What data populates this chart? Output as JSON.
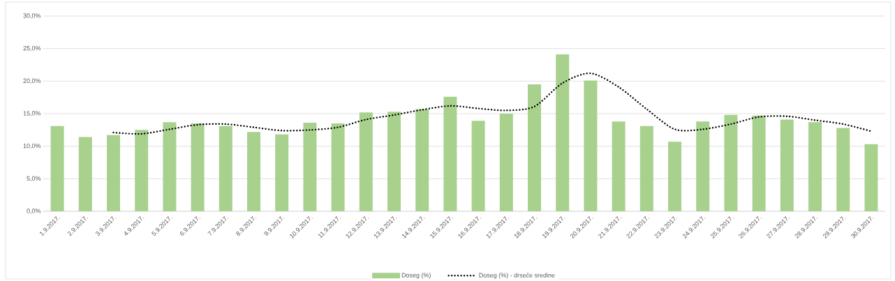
{
  "chart_data": {
    "type": "bar",
    "categories": [
      "1.9.2017.",
      "2.9.2017.",
      "3.9.2017.",
      "4.9.2017.",
      "5.9.2017.",
      "6.9.2017.",
      "7.9.2017.",
      "8.9.2017.",
      "9.9.2017.",
      "10.9.2017.",
      "11.9.2017.",
      "12.9.2017.",
      "13.9.2017.",
      "14.9.2017.",
      "15.9.2017.",
      "16.9.2017.",
      "17.9.2017.",
      "18.9.2017.",
      "19.9.2017.",
      "20.9.2017.",
      "21.9.2017.",
      "22.9.2017.",
      "23.9.2017.",
      "24.9.2017.",
      "25.9.2017.",
      "26.9.2017.",
      "27.9.2017.",
      "28.9.2017.",
      "29.9.2017.",
      "30.9.2017."
    ],
    "series": [
      {
        "name": "Doseg (%)",
        "color": "#a9d18e",
        "values": [
          13.1,
          11.4,
          11.7,
          12.5,
          13.7,
          13.5,
          13.1,
          12.2,
          11.8,
          13.6,
          13.5,
          15.2,
          15.3,
          15.7,
          17.6,
          13.9,
          15.0,
          19.5,
          24.1,
          20.1,
          13.8,
          13.1,
          10.7,
          13.8,
          14.8,
          14.7,
          14.1,
          13.7,
          12.8,
          10.3
        ]
      },
      {
        "name": "Doseg (%) - drseče sredine",
        "type": "line",
        "color": "#000000",
        "line_style": "dotted",
        "values": [
          null,
          null,
          12.1,
          11.9,
          12.6,
          13.3,
          13.4,
          12.9,
          12.4,
          12.5,
          12.9,
          14.1,
          14.8,
          15.6,
          16.2,
          15.8,
          15.5,
          16.1,
          19.7,
          21.2,
          19.1,
          15.7,
          12.6,
          12.6,
          13.4,
          14.5,
          14.6,
          14.0,
          13.4,
          12.3
        ]
      }
    ],
    "ylim": [
      0,
      30
    ],
    "yticks": [
      {
        "value": 0,
        "label": "0,0%"
      },
      {
        "value": 5,
        "label": "5,0%"
      },
      {
        "value": 10,
        "label": "10,0%"
      },
      {
        "value": 15,
        "label": "15,0%"
      },
      {
        "value": 20,
        "label": "20,0%"
      },
      {
        "value": 25,
        "label": "25,0%"
      },
      {
        "value": 30,
        "label": "30,0%"
      }
    ],
    "grid": "y",
    "legend": "bottom"
  }
}
